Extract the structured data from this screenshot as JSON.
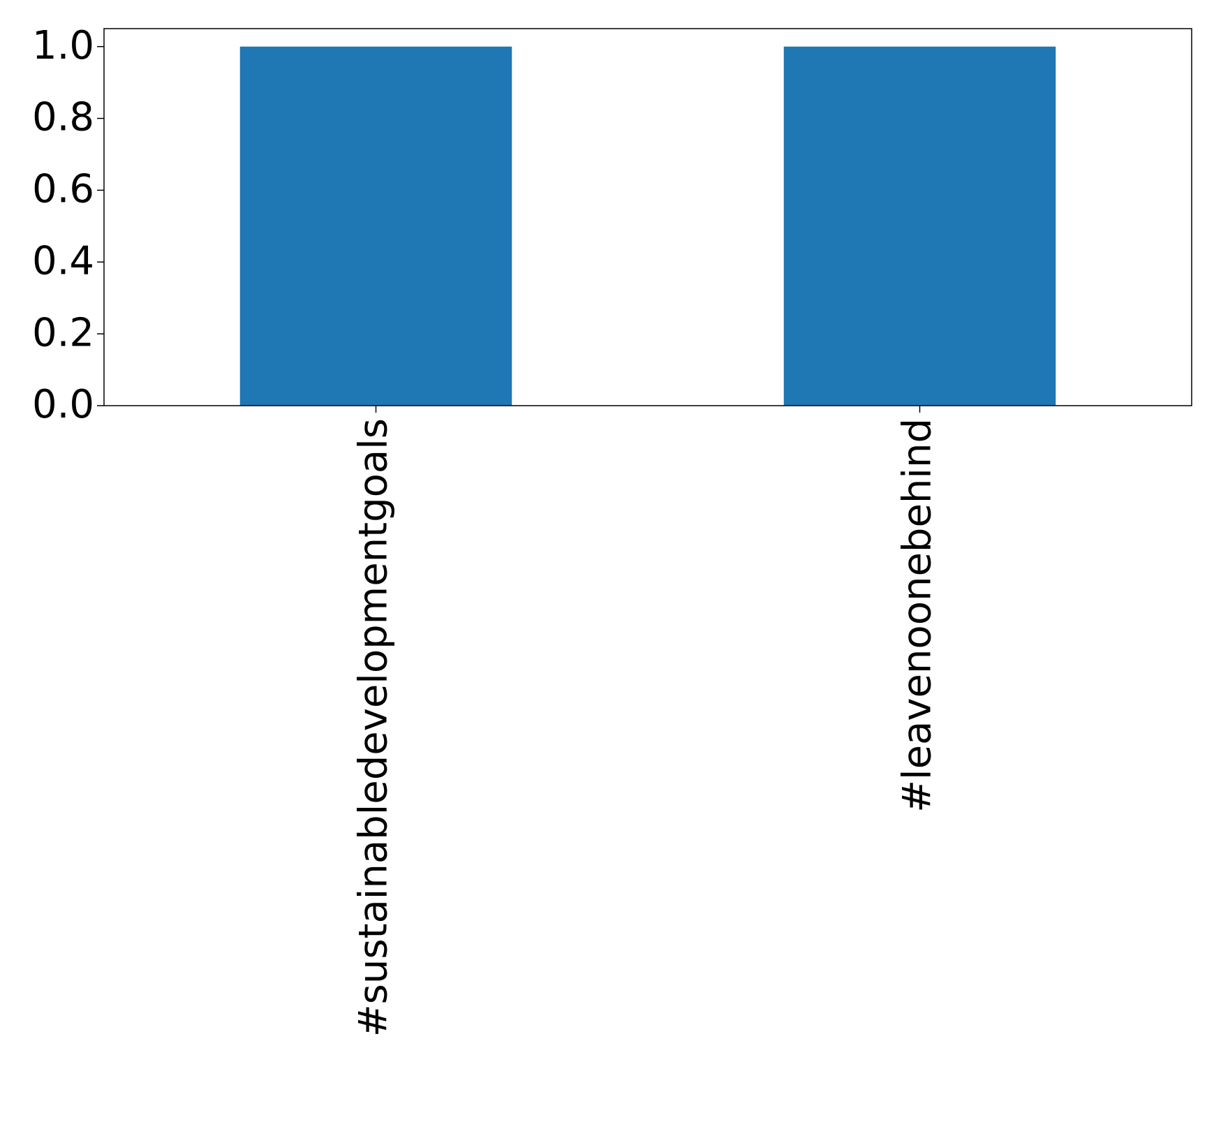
{
  "chart_data": {
    "type": "bar",
    "categories": [
      "#sustainabledevelopmentgoals",
      "#leavenoonebehind"
    ],
    "values": [
      1,
      1
    ],
    "color": "#1f77b4",
    "ylim": [
      0,
      1.05
    ],
    "yticks": [
      {
        "value": 0,
        "label": "0.0"
      },
      0.2,
      0.4,
      0.6,
      0.8,
      {
        "value": 1,
        "label": "1.0"
      }
    ],
    "grid": false
  }
}
